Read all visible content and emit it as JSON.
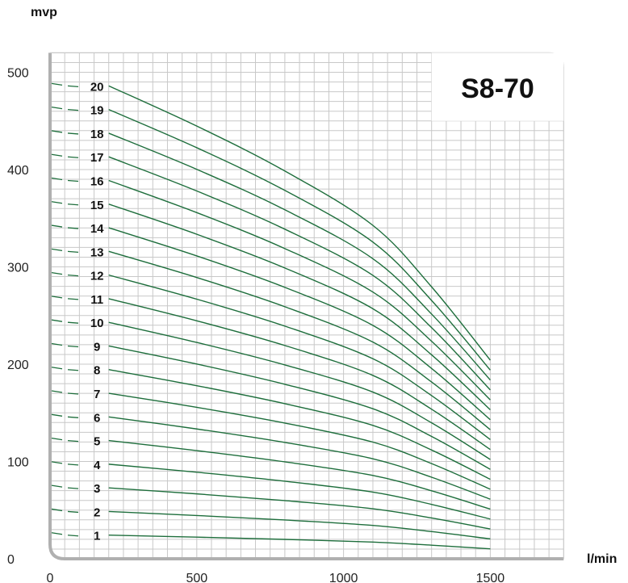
{
  "chart_data": {
    "type": "line",
    "title": "S8-70",
    "xlabel": "l/min",
    "ylabel": "mvp",
    "xlim": [
      0,
      1750
    ],
    "ylim": [
      0,
      520
    ],
    "xticks": [
      "0",
      "500",
      "1000",
      "1500"
    ],
    "yticks": [
      "0",
      "100",
      "200",
      "300",
      "400",
      "500"
    ],
    "grid": true,
    "colors": {
      "curve": "#1e6e3c",
      "grid": "#c8c8c8",
      "axis": "#b0b0b0",
      "dash": "#1e6e3c"
    },
    "x": [
      200,
      500,
      800,
      1100,
      1300,
      1500
    ],
    "curve_ratios": [
      1.0,
      0.915,
      0.82,
      0.705,
      0.575,
      0.42
    ],
    "series": [
      {
        "name": "1",
        "y0": 24.3
      },
      {
        "name": "2",
        "y0": 48.6
      },
      {
        "name": "3",
        "y0": 72.9
      },
      {
        "name": "4",
        "y0": 97.2
      },
      {
        "name": "5",
        "y0": 121.5
      },
      {
        "name": "6",
        "y0": 145.8
      },
      {
        "name": "7",
        "y0": 170.1
      },
      {
        "name": "8",
        "y0": 194.4
      },
      {
        "name": "9",
        "y0": 218.7
      },
      {
        "name": "10",
        "y0": 243.0
      },
      {
        "name": "11",
        "y0": 267.3
      },
      {
        "name": "12",
        "y0": 291.6
      },
      {
        "name": "13",
        "y0": 315.9
      },
      {
        "name": "14",
        "y0": 340.2
      },
      {
        "name": "15",
        "y0": 364.5
      },
      {
        "name": "16",
        "y0": 388.8
      },
      {
        "name": "17",
        "y0": 413.1
      },
      {
        "name": "18",
        "y0": 437.4
      },
      {
        "name": "19",
        "y0": 461.7
      },
      {
        "name": "20",
        "y0": 486.0
      }
    ]
  }
}
